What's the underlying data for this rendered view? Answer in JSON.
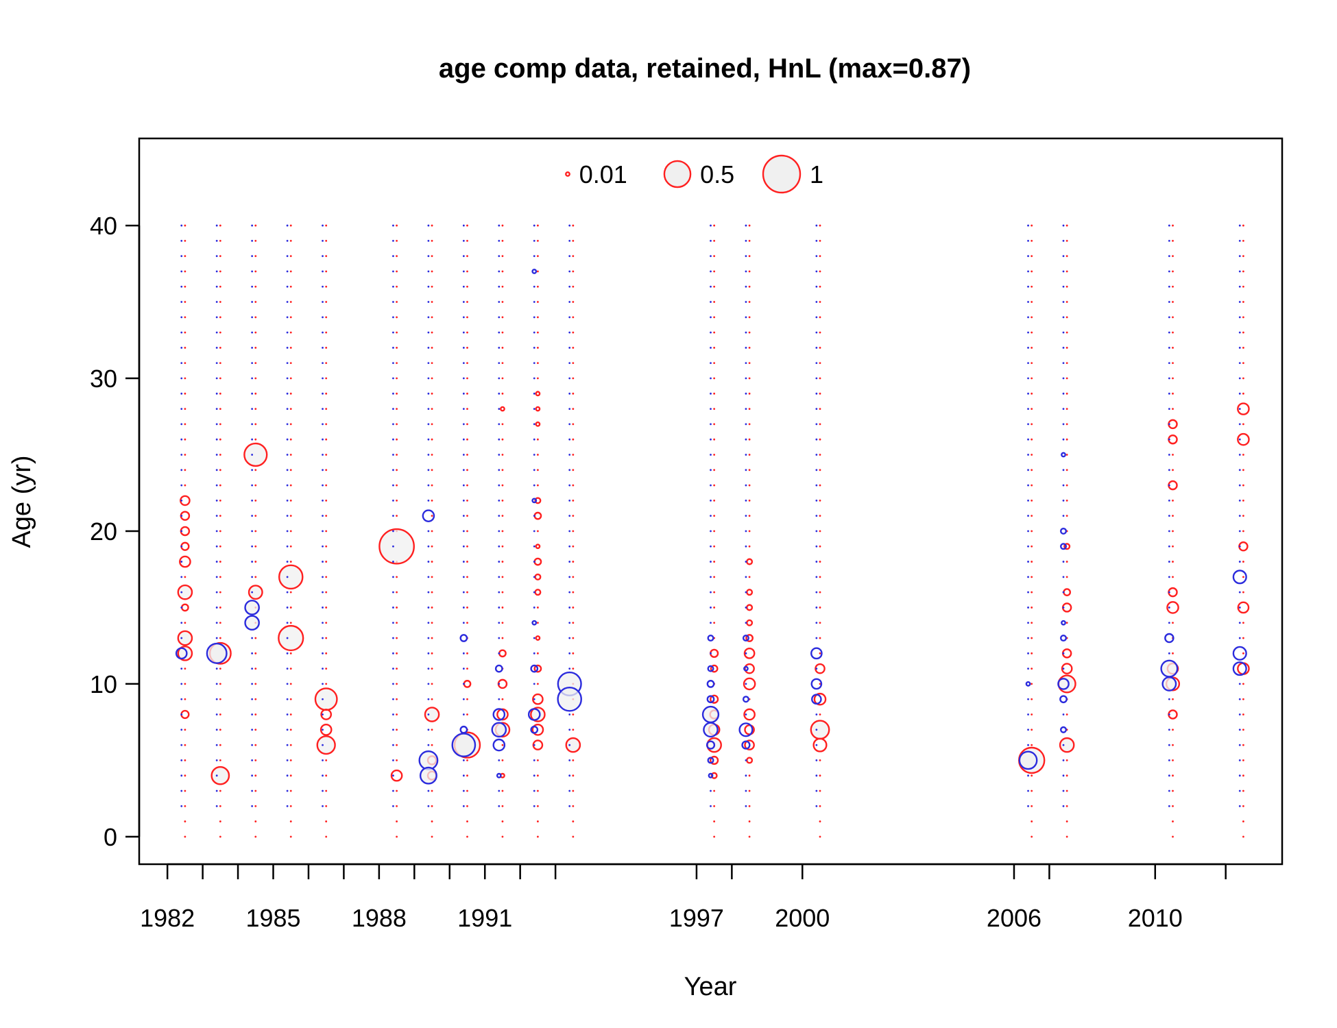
{
  "chart_data": {
    "type": "bubble",
    "title": "age comp data, retained, HnL (max=0.87)",
    "xlabel": "Year",
    "ylabel": "Age (yr)",
    "xlim": [
      1981.2,
      2013.6
    ],
    "ylim": [
      -1.8,
      45.7
    ],
    "x_tick_positions": [
      1982,
      1983,
      1984,
      1985,
      1986,
      1987,
      1988,
      1989,
      1990,
      1991,
      1992,
      1993,
      1997,
      1998,
      2000,
      2006,
      2007,
      2010,
      2012
    ],
    "x_tick_labels": [
      {
        "x": 1982,
        "label": "1982"
      },
      {
        "x": 1985,
        "label": "1985"
      },
      {
        "x": 1988,
        "label": "1988"
      },
      {
        "x": 1991,
        "label": "1991"
      },
      {
        "x": 1997,
        "label": "1997"
      },
      {
        "x": 2000,
        "label": "2000"
      },
      {
        "x": 2006,
        "label": "2006"
      },
      {
        "x": 2010,
        "label": "2010"
      }
    ],
    "y_ticks": [
      {
        "y": 0,
        "label": "0"
      },
      {
        "y": 10,
        "label": "10"
      },
      {
        "y": 20,
        "label": "20"
      },
      {
        "y": 30,
        "label": "30"
      },
      {
        "y": 40,
        "label": "40"
      }
    ],
    "legend": {
      "placement": "top",
      "entries": [
        {
          "value": 0.01,
          "label": "0.01"
        },
        {
          "value": 0.5,
          "label": "0.5"
        },
        {
          "value": 1,
          "label": "1"
        }
      ]
    },
    "colors": {
      "series_a": "#ff2020",
      "series_b": "#2b2bdd",
      "fill": "#f0f0f0",
      "axis": "#000000"
    },
    "age_range": [
      0,
      40
    ],
    "series": [
      {
        "color": "red",
        "ages_start": 0,
        "years": [
          1982.5,
          1983.5,
          1984.5,
          1985.5,
          1986.5,
          1988.5,
          1989.5,
          1990.5,
          1991.5,
          1992.5,
          1993.5,
          1997.5,
          1998.5,
          2000.5,
          2006.5,
          2007.5,
          2010.5,
          2012.5
        ],
        "points": [
          {
            "x": 1982.5,
            "y": 22,
            "v": 0.06
          },
          {
            "x": 1982.5,
            "y": 21,
            "v": 0.05
          },
          {
            "x": 1982.5,
            "y": 20,
            "v": 0.05
          },
          {
            "x": 1982.5,
            "y": 19,
            "v": 0.04
          },
          {
            "x": 1982.5,
            "y": 18,
            "v": 0.08
          },
          {
            "x": 1982.5,
            "y": 16,
            "v": 0.14
          },
          {
            "x": 1982.5,
            "y": 15,
            "v": 0.03
          },
          {
            "x": 1982.5,
            "y": 13,
            "v": 0.14
          },
          {
            "x": 1982.5,
            "y": 12,
            "v": 0.14
          },
          {
            "x": 1982.5,
            "y": 8,
            "v": 0.04
          },
          {
            "x": 1983.5,
            "y": 12,
            "v": 0.32
          },
          {
            "x": 1983.5,
            "y": 4,
            "v": 0.22
          },
          {
            "x": 1984.5,
            "y": 25,
            "v": 0.37
          },
          {
            "x": 1984.5,
            "y": 16,
            "v": 0.13
          },
          {
            "x": 1985.5,
            "y": 17,
            "v": 0.4
          },
          {
            "x": 1985.5,
            "y": 13,
            "v": 0.44
          },
          {
            "x": 1986.5,
            "y": 9,
            "v": 0.34
          },
          {
            "x": 1986.5,
            "y": 8,
            "v": 0.07
          },
          {
            "x": 1986.5,
            "y": 7,
            "v": 0.08
          },
          {
            "x": 1986.5,
            "y": 6,
            "v": 0.23
          },
          {
            "x": 1988.5,
            "y": 19,
            "v": 0.87
          },
          {
            "x": 1988.5,
            "y": 4,
            "v": 0.08
          },
          {
            "x": 1989.5,
            "y": 8,
            "v": 0.14
          },
          {
            "x": 1989.5,
            "y": 5,
            "v": 0.05
          },
          {
            "x": 1989.5,
            "y": 4,
            "v": 0.05
          },
          {
            "x": 1990.5,
            "y": 10,
            "v": 0.03
          },
          {
            "x": 1990.5,
            "y": 6,
            "v": 0.47
          },
          {
            "x": 1991.5,
            "y": 28,
            "v": 0.01
          },
          {
            "x": 1991.5,
            "y": 12,
            "v": 0.03
          },
          {
            "x": 1991.5,
            "y": 10,
            "v": 0.05
          },
          {
            "x": 1991.5,
            "y": 8,
            "v": 0.08
          },
          {
            "x": 1991.5,
            "y": 7,
            "v": 0.14
          },
          {
            "x": 1991.5,
            "y": 4,
            "v": 0.01
          },
          {
            "x": 1992.5,
            "y": 29,
            "v": 0.01
          },
          {
            "x": 1992.5,
            "y": 28,
            "v": 0.01
          },
          {
            "x": 1992.5,
            "y": 27,
            "v": 0.01
          },
          {
            "x": 1992.5,
            "y": 22,
            "v": 0.02
          },
          {
            "x": 1992.5,
            "y": 21,
            "v": 0.03
          },
          {
            "x": 1992.5,
            "y": 19,
            "v": 0.01
          },
          {
            "x": 1992.5,
            "y": 18,
            "v": 0.03
          },
          {
            "x": 1992.5,
            "y": 17,
            "v": 0.02
          },
          {
            "x": 1992.5,
            "y": 16,
            "v": 0.02
          },
          {
            "x": 1992.5,
            "y": 13,
            "v": 0.01
          },
          {
            "x": 1992.5,
            "y": 11,
            "v": 0.03
          },
          {
            "x": 1992.5,
            "y": 9,
            "v": 0.07
          },
          {
            "x": 1992.5,
            "y": 8,
            "v": 0.14
          },
          {
            "x": 1992.5,
            "y": 7,
            "v": 0.08
          },
          {
            "x": 1992.5,
            "y": 6,
            "v": 0.06
          },
          {
            "x": 1993.5,
            "y": 6,
            "v": 0.14
          },
          {
            "x": 1997.5,
            "y": 12,
            "v": 0.04
          },
          {
            "x": 1997.5,
            "y": 11,
            "v": 0.03
          },
          {
            "x": 1997.5,
            "y": 9,
            "v": 0.04
          },
          {
            "x": 1997.5,
            "y": 8,
            "v": 0.05
          },
          {
            "x": 1997.5,
            "y": 7,
            "v": 0.08
          },
          {
            "x": 1997.5,
            "y": 6,
            "v": 0.14
          },
          {
            "x": 1997.5,
            "y": 5,
            "v": 0.04
          },
          {
            "x": 1997.5,
            "y": 4,
            "v": 0.02
          },
          {
            "x": 1998.5,
            "y": 18,
            "v": 0.02
          },
          {
            "x": 1998.5,
            "y": 16,
            "v": 0.02
          },
          {
            "x": 1998.5,
            "y": 15,
            "v": 0.02
          },
          {
            "x": 1998.5,
            "y": 14,
            "v": 0.02
          },
          {
            "x": 1998.5,
            "y": 13,
            "v": 0.03
          },
          {
            "x": 1998.5,
            "y": 12,
            "v": 0.07
          },
          {
            "x": 1998.5,
            "y": 11,
            "v": 0.06
          },
          {
            "x": 1998.5,
            "y": 10,
            "v": 0.09
          },
          {
            "x": 1998.5,
            "y": 8,
            "v": 0.08
          },
          {
            "x": 1998.5,
            "y": 7,
            "v": 0.06
          },
          {
            "x": 1998.5,
            "y": 6,
            "v": 0.06
          },
          {
            "x": 1998.5,
            "y": 5,
            "v": 0.02
          },
          {
            "x": 2000.5,
            "y": 11,
            "v": 0.06
          },
          {
            "x": 2000.5,
            "y": 9,
            "v": 0.09
          },
          {
            "x": 2000.5,
            "y": 7,
            "v": 0.24
          },
          {
            "x": 2000.5,
            "y": 6,
            "v": 0.12
          },
          {
            "x": 2006.5,
            "y": 5,
            "v": 0.47
          },
          {
            "x": 2007.5,
            "y": 19,
            "v": 0.02
          },
          {
            "x": 2007.5,
            "y": 16,
            "v": 0.03
          },
          {
            "x": 2007.5,
            "y": 15,
            "v": 0.05
          },
          {
            "x": 2007.5,
            "y": 12,
            "v": 0.05
          },
          {
            "x": 2007.5,
            "y": 11,
            "v": 0.07
          },
          {
            "x": 2007.5,
            "y": 10,
            "v": 0.21
          },
          {
            "x": 2007.5,
            "y": 6,
            "v": 0.14
          },
          {
            "x": 2010.5,
            "y": 27,
            "v": 0.05
          },
          {
            "x": 2010.5,
            "y": 26,
            "v": 0.05
          },
          {
            "x": 2010.5,
            "y": 23,
            "v": 0.05
          },
          {
            "x": 2010.5,
            "y": 16,
            "v": 0.05
          },
          {
            "x": 2010.5,
            "y": 15,
            "v": 0.09
          },
          {
            "x": 2010.5,
            "y": 11,
            "v": 0.08
          },
          {
            "x": 2010.5,
            "y": 10,
            "v": 0.12
          },
          {
            "x": 2010.5,
            "y": 8,
            "v": 0.05
          },
          {
            "x": 2012.5,
            "y": 28,
            "v": 0.09
          },
          {
            "x": 2012.5,
            "y": 26,
            "v": 0.09
          },
          {
            "x": 2012.5,
            "y": 19,
            "v": 0.05
          },
          {
            "x": 2012.5,
            "y": 15,
            "v": 0.08
          },
          {
            "x": 2012.5,
            "y": 11,
            "v": 0.09
          }
        ]
      },
      {
        "color": "blue",
        "ages_start": 2,
        "years": [
          1982.4,
          1983.4,
          1984.4,
          1985.4,
          1986.4,
          1988.4,
          1989.4,
          1990.4,
          1991.4,
          1992.4,
          1993.4,
          1997.4,
          1998.4,
          2000.4,
          2006.4,
          2007.4,
          2010.4,
          2012.4
        ],
        "points": [
          {
            "x": 1982.4,
            "y": 12,
            "v": 0.08
          },
          {
            "x": 1983.4,
            "y": 12,
            "v": 0.28
          },
          {
            "x": 1984.4,
            "y": 15,
            "v": 0.14
          },
          {
            "x": 1984.4,
            "y": 14,
            "v": 0.14
          },
          {
            "x": 1989.4,
            "y": 21,
            "v": 0.09
          },
          {
            "x": 1989.4,
            "y": 5,
            "v": 0.24
          },
          {
            "x": 1989.4,
            "y": 4,
            "v": 0.19
          },
          {
            "x": 1990.4,
            "y": 13,
            "v": 0.03
          },
          {
            "x": 1990.4,
            "y": 7,
            "v": 0.03
          },
          {
            "x": 1990.4,
            "y": 6,
            "v": 0.38
          },
          {
            "x": 1991.4,
            "y": 11,
            "v": 0.03
          },
          {
            "x": 1991.4,
            "y": 8,
            "v": 0.09
          },
          {
            "x": 1991.4,
            "y": 7,
            "v": 0.14
          },
          {
            "x": 1991.4,
            "y": 6,
            "v": 0.09
          },
          {
            "x": 1991.4,
            "y": 4,
            "v": 0.01
          },
          {
            "x": 1992.4,
            "y": 37,
            "v": 0.01
          },
          {
            "x": 1992.4,
            "y": 22,
            "v": 0.01
          },
          {
            "x": 1992.4,
            "y": 14,
            "v": 0.01
          },
          {
            "x": 1992.4,
            "y": 11,
            "v": 0.03
          },
          {
            "x": 1992.4,
            "y": 8,
            "v": 0.09
          },
          {
            "x": 1992.4,
            "y": 7,
            "v": 0.03
          },
          {
            "x": 1993.4,
            "y": 10,
            "v": 0.39
          },
          {
            "x": 1993.4,
            "y": 9,
            "v": 0.4
          },
          {
            "x": 1997.4,
            "y": 13,
            "v": 0.02
          },
          {
            "x": 1997.4,
            "y": 11,
            "v": 0.02
          },
          {
            "x": 1997.4,
            "y": 10,
            "v": 0.03
          },
          {
            "x": 1997.4,
            "y": 9,
            "v": 0.03
          },
          {
            "x": 1997.4,
            "y": 8,
            "v": 0.18
          },
          {
            "x": 1997.4,
            "y": 7,
            "v": 0.14
          },
          {
            "x": 1997.4,
            "y": 6,
            "v": 0.04
          },
          {
            "x": 1997.4,
            "y": 5,
            "v": 0.02
          },
          {
            "x": 1997.4,
            "y": 4,
            "v": 0.01
          },
          {
            "x": 1998.4,
            "y": 13,
            "v": 0.02
          },
          {
            "x": 1998.4,
            "y": 11,
            "v": 0.01
          },
          {
            "x": 1998.4,
            "y": 9,
            "v": 0.02
          },
          {
            "x": 1998.4,
            "y": 7,
            "v": 0.12
          },
          {
            "x": 1998.4,
            "y": 6,
            "v": 0.04
          },
          {
            "x": 2000.4,
            "y": 12,
            "v": 0.08
          },
          {
            "x": 2000.4,
            "y": 10,
            "v": 0.07
          },
          {
            "x": 2000.4,
            "y": 9,
            "v": 0.06
          },
          {
            "x": 2006.4,
            "y": 10,
            "v": 0.01
          },
          {
            "x": 2006.4,
            "y": 5,
            "v": 0.22
          },
          {
            "x": 2007.4,
            "y": 25,
            "v": 0.01
          },
          {
            "x": 2007.4,
            "y": 20,
            "v": 0.02
          },
          {
            "x": 2007.4,
            "y": 19,
            "v": 0.02
          },
          {
            "x": 2007.4,
            "y": 14,
            "v": 0.01
          },
          {
            "x": 2007.4,
            "y": 13,
            "v": 0.02
          },
          {
            "x": 2007.4,
            "y": 10,
            "v": 0.08
          },
          {
            "x": 2007.4,
            "y": 9,
            "v": 0.03
          },
          {
            "x": 2007.4,
            "y": 7,
            "v": 0.02
          },
          {
            "x": 2010.4,
            "y": 13,
            "v": 0.05
          },
          {
            "x": 2010.4,
            "y": 11,
            "v": 0.19
          },
          {
            "x": 2010.4,
            "y": 10,
            "v": 0.13
          },
          {
            "x": 2012.4,
            "y": 17,
            "v": 0.12
          },
          {
            "x": 2012.4,
            "y": 12,
            "v": 0.12
          },
          {
            "x": 2012.4,
            "y": 11,
            "v": 0.12
          }
        ]
      }
    ]
  }
}
